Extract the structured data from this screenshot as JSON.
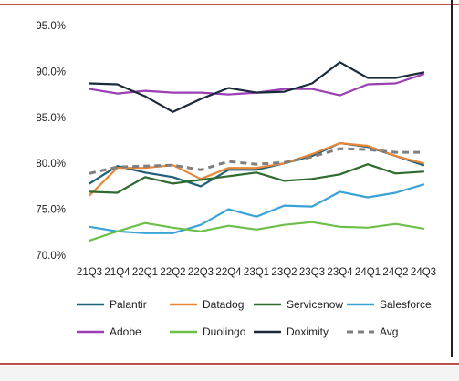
{
  "chart_data": {
    "type": "line",
    "title": "",
    "xlabel": "",
    "ylabel": "",
    "ylim": [
      70,
      95
    ],
    "yticks": [
      "70.0%",
      "75.0%",
      "80.0%",
      "85.0%",
      "90.0%",
      "95.0%"
    ],
    "ytick_values": [
      70,
      75,
      80,
      85,
      90,
      95
    ],
    "categories": [
      "21Q3",
      "21Q4",
      "22Q1",
      "22Q2",
      "22Q3",
      "22Q4",
      "23Q1",
      "23Q2",
      "23Q3",
      "23Q4",
      "24Q1",
      "24Q2",
      "24Q3"
    ],
    "grid": "none",
    "legend_position": "bottom",
    "series": [
      {
        "name": "Palantir",
        "color": "#1f5f7a",
        "dashed": false,
        "values": [
          77.8,
          79.7,
          79.0,
          78.5,
          77.5,
          79.3,
          79.3,
          80.0,
          80.8,
          82.2,
          81.8,
          80.8,
          79.8
        ]
      },
      {
        "name": "Datadog",
        "color": "#e8873a",
        "dashed": false,
        "values": [
          76.5,
          79.5,
          79.5,
          79.8,
          78.3,
          79.5,
          79.5,
          80.0,
          81.0,
          82.2,
          81.9,
          80.8,
          80.0
        ]
      },
      {
        "name": "Servicenow",
        "color": "#2e6b2e",
        "dashed": false,
        "values": [
          76.9,
          76.8,
          78.5,
          77.8,
          78.2,
          78.6,
          79.0,
          78.1,
          78.3,
          78.8,
          79.9,
          78.9,
          79.1
        ]
      },
      {
        "name": "Salesforce",
        "color": "#3aa3d6",
        "dashed": false,
        "values": [
          73.1,
          72.6,
          72.4,
          72.4,
          73.3,
          75.0,
          74.2,
          75.4,
          75.3,
          76.9,
          76.3,
          76.8,
          77.7
        ]
      },
      {
        "name": "Adobe",
        "color": "#9b3fb4",
        "dashed": false,
        "values": [
          88.1,
          87.6,
          87.9,
          87.7,
          87.7,
          87.5,
          87.7,
          88.1,
          88.1,
          87.4,
          88.6,
          88.7,
          89.7
        ]
      },
      {
        "name": "Duolingo",
        "color": "#6cc04a",
        "dashed": false,
        "values": [
          71.6,
          72.6,
          73.5,
          73.0,
          72.6,
          73.2,
          72.8,
          73.3,
          73.6,
          73.1,
          73.0,
          73.4,
          72.9
        ]
      },
      {
        "name": "Doximity",
        "color": "#1b2a3a",
        "dashed": false,
        "values": [
          88.7,
          88.6,
          87.3,
          85.6,
          87.0,
          88.2,
          87.7,
          87.8,
          88.7,
          91.0,
          89.3,
          89.3,
          89.9
        ]
      },
      {
        "name": "Avg",
        "color": "#7f7f7f",
        "dashed": true,
        "values": [
          78.9,
          79.6,
          79.7,
          79.8,
          79.3,
          80.2,
          79.9,
          80.1,
          80.7,
          81.6,
          81.5,
          81.2,
          81.2
        ]
      }
    ]
  }
}
